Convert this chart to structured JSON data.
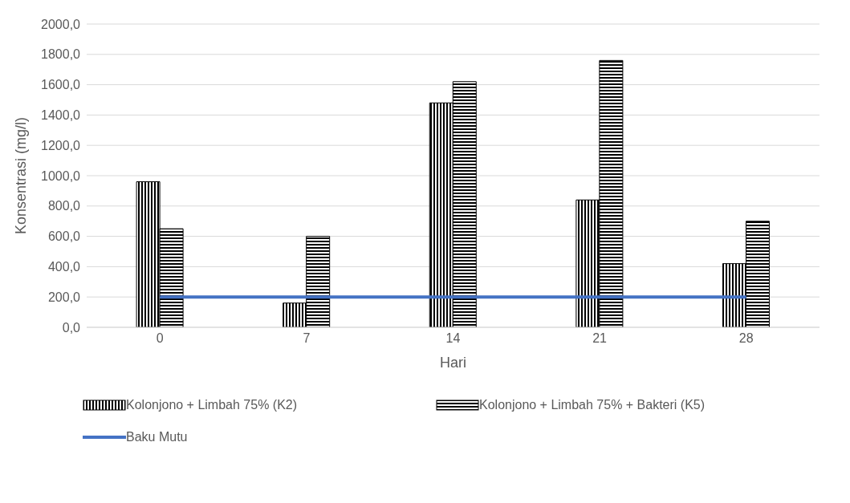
{
  "chart_data": {
    "type": "bar",
    "xlabel": "Hari",
    "ylabel": "Konsentrasi (mg/l)",
    "categories": [
      "0",
      "7",
      "14",
      "21",
      "28"
    ],
    "series": [
      {
        "name": "Kolonjono + Limbah 75% (K2)",
        "color": "#000000",
        "values": [
          960,
          160,
          1480,
          840,
          420
        ]
      },
      {
        "name": "Kolonjono + Limbah 75% + Bakteri (K5)",
        "color": "#000000",
        "values": [
          650,
          600,
          1620,
          1760,
          700
        ]
      },
      {
        "name": "Baku Mutu",
        "type": "line",
        "color": "#4472c4",
        "values": [
          200,
          200,
          200,
          200,
          200
        ]
      }
    ],
    "ylim": [
      0,
      2000
    ],
    "yticks": [
      {
        "value": 0,
        "label": "0,0"
      },
      {
        "value": 200,
        "label": "200,0"
      },
      {
        "value": 400,
        "label": "400,0"
      },
      {
        "value": 600,
        "label": "600,0"
      },
      {
        "value": 800,
        "label": "800,0"
      },
      {
        "value": 1000,
        "label": "1000,0"
      },
      {
        "value": 1200,
        "label": "1200,0"
      },
      {
        "value": 1400,
        "label": "1400,0"
      },
      {
        "value": 1600,
        "label": "1600,0"
      },
      {
        "value": 1800,
        "label": "1800,0"
      },
      {
        "value": 2000,
        "label": "2000,0"
      }
    ],
    "grid": "y",
    "legend": "bottom",
    "marker": "none"
  }
}
